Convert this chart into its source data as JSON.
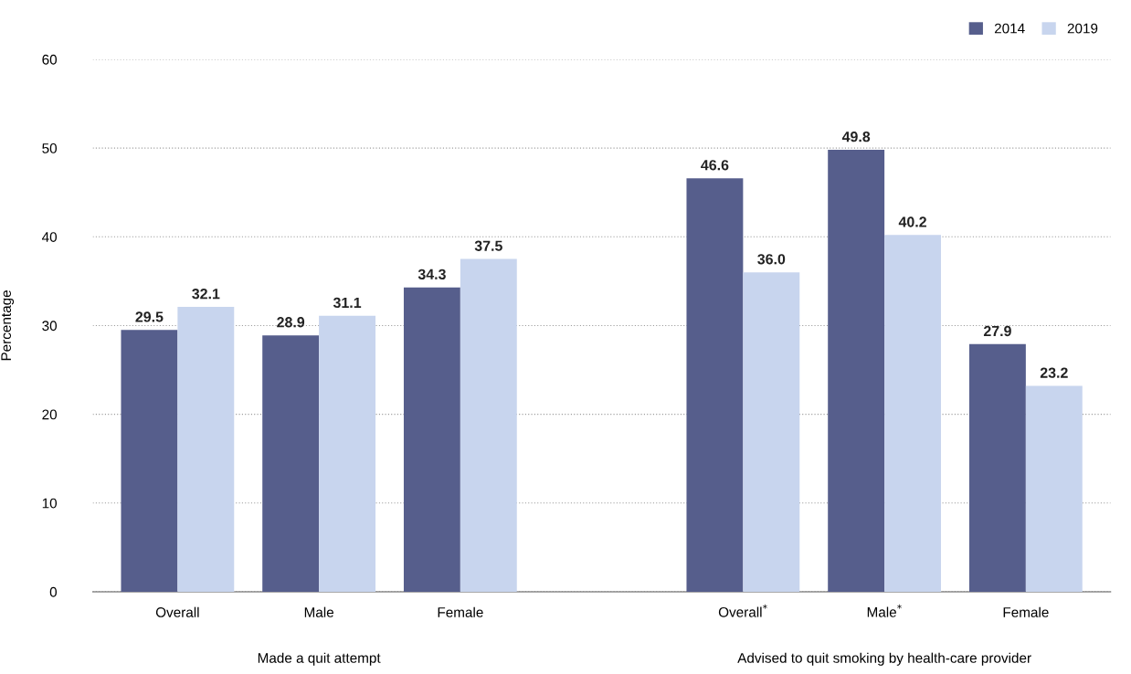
{
  "chart_data": {
    "type": "bar",
    "ylabel": "Percentage",
    "categories": [
      "Overall",
      "Male",
      "Female",
      null,
      "Overall$^{*}$",
      "Male$^{*}$",
      "Female"
    ],
    "series": [
      {
        "name": "2014",
        "color": "#565e8c",
        "values": [
          29.5,
          28.9,
          34.3,
          null,
          46.6,
          49.8,
          27.9
        ],
        "value_labels": [
          "29.5",
          "28.9",
          "34.3",
          null,
          "46.6",
          "49.8",
          "27.9"
        ]
      },
      {
        "name": "2019",
        "color": "#c8d5ee",
        "values": [
          32.1,
          31.1,
          37.5,
          null,
          36.0,
          40.2,
          23.2
        ],
        "value_labels": [
          "32.1",
          "31.1",
          "37.5",
          null,
          "36.0",
          "40.2",
          "23.2"
        ]
      }
    ],
    "ylim": [
      0,
      60
    ],
    "yticks": [
      0,
      10,
      20,
      30,
      40,
      50,
      60
    ],
    "grid": "y",
    "legend": "top right",
    "annotations": [
      "Made a quit attempt",
      "Advised to quit smoking by health-care provider"
    ]
  }
}
